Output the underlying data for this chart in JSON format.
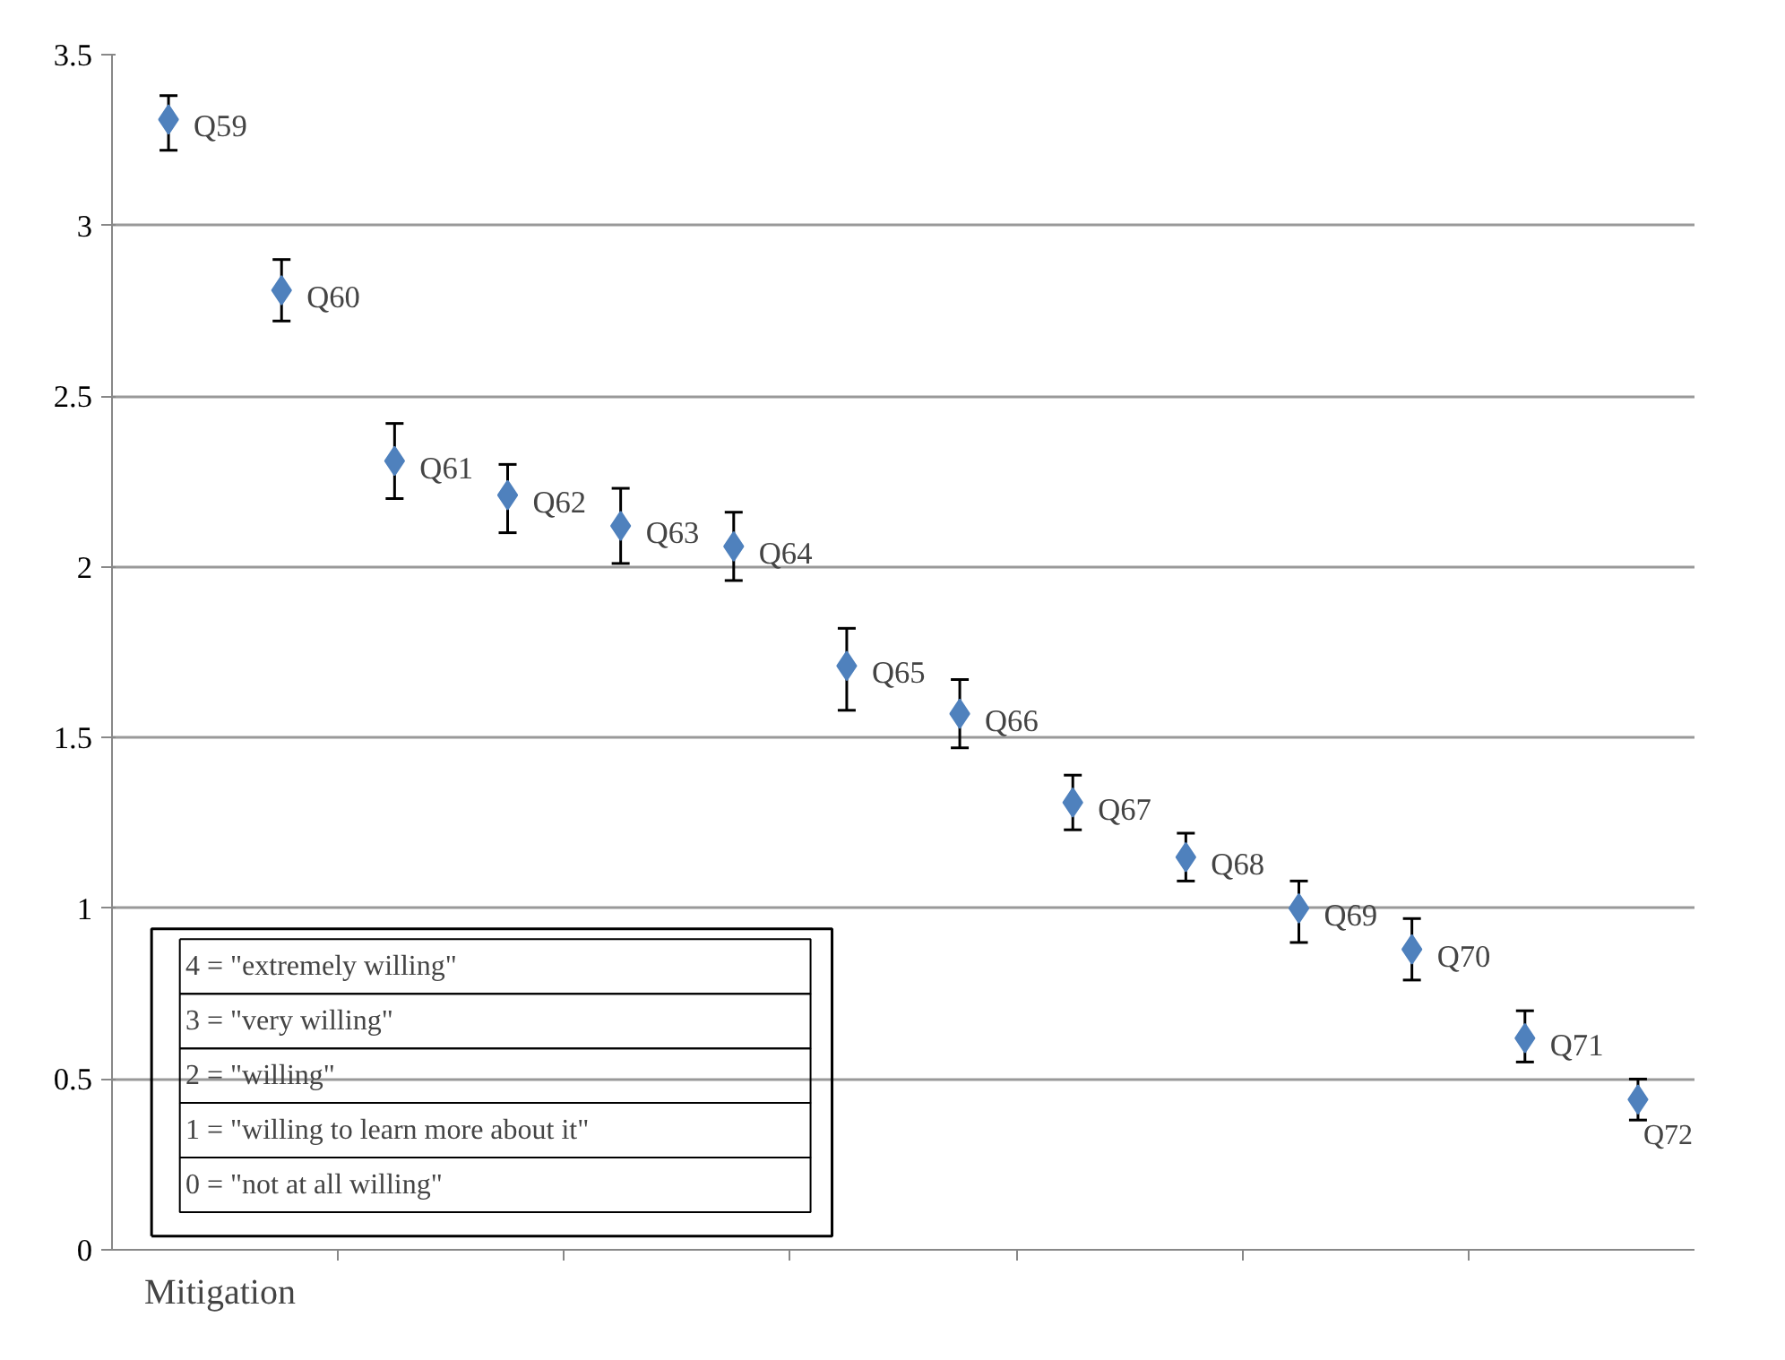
{
  "chart_data": {
    "type": "scatter",
    "xlabel": "Mitigation",
    "categories": [
      "Q59",
      "Q60",
      "Q61",
      "Q62",
      "Q63",
      "Q64",
      "Q65",
      "Q66",
      "Q67",
      "Q68",
      "Q69",
      "Q70",
      "Q71",
      "Q72"
    ],
    "series": [
      {
        "color": "#4f81bd",
        "values": [
          3.31,
          2.81,
          2.31,
          2.21,
          2.12,
          2.06,
          1.71,
          1.57,
          1.31,
          1.15,
          1.0,
          0.88,
          0.62,
          0.44
        ],
        "errors": [
          [
            3.22,
            3.38
          ],
          [
            2.72,
            2.9
          ],
          [
            2.2,
            2.42
          ],
          [
            2.1,
            2.3
          ],
          [
            2.01,
            2.23
          ],
          [
            1.96,
            2.16
          ],
          [
            1.58,
            1.82
          ],
          [
            1.47,
            1.67
          ],
          [
            1.23,
            1.39
          ],
          [
            1.08,
            1.22
          ],
          [
            0.9,
            1.08
          ],
          [
            0.79,
            0.97
          ],
          [
            0.55,
            0.7
          ],
          [
            0.38,
            0.5
          ]
        ]
      }
    ],
    "ylim": [
      0,
      3.5
    ],
    "yticks": [
      0,
      0.5,
      1,
      1.5,
      2,
      2.5,
      3,
      3.5
    ],
    "grid": "y",
    "marker": "diamond",
    "annotations": [
      "4 = \"extremely willing\"",
      "3 = \"very willing\"",
      "2 = \"willing\"",
      "1 = \"willing to learn more about it\"",
      "0 = \"not at all willing\""
    ]
  }
}
